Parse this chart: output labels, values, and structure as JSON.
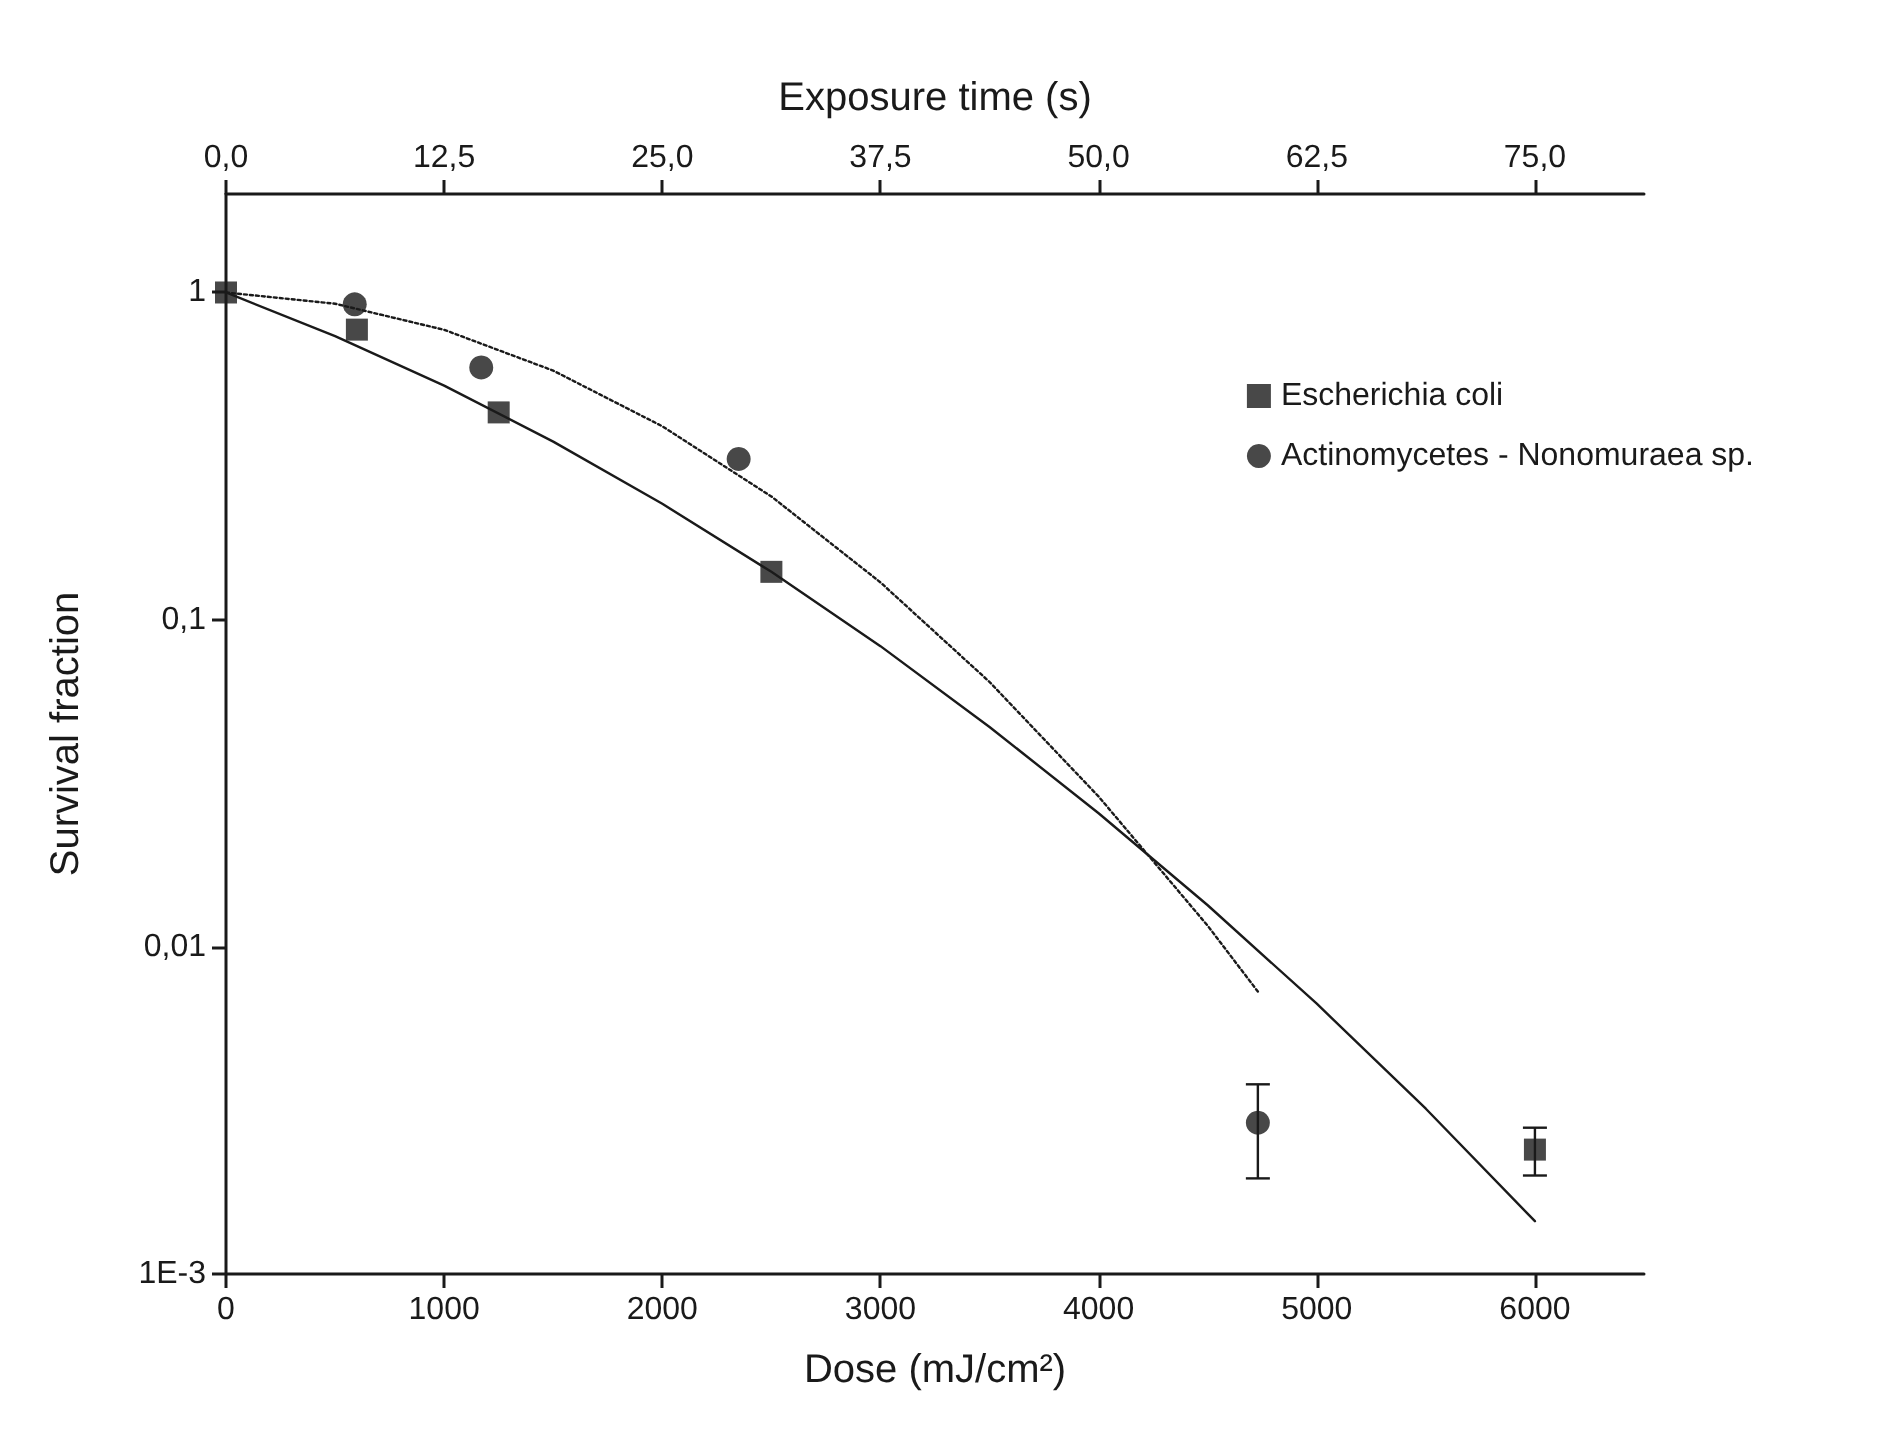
{
  "chart_data": {
    "type": "scatter",
    "xlabel": "Dose (mJ/cm²)",
    "ylabel": "Survival fraction",
    "x2label": "Exposure time (s)",
    "xlim": [
      0,
      6500
    ],
    "xticks": [
      0,
      1000,
      2000,
      3000,
      4000,
      5000,
      6000
    ],
    "x2lim": [
      0,
      81.25
    ],
    "x2ticks": [
      {
        "value": 0,
        "label": "0,0"
      },
      {
        "value": 12.5,
        "label": "12,5"
      },
      {
        "value": 25,
        "label": "25,0"
      },
      {
        "value": 37.5,
        "label": "37,5"
      },
      {
        "value": 50,
        "label": "50,0"
      },
      {
        "value": 62.5,
        "label": "62,5"
      },
      {
        "value": 75,
        "label": "75,0"
      }
    ],
    "ylim": [
      0.001,
      2
    ],
    "yticks": [
      {
        "value": 0.001,
        "label": "1E-3"
      },
      {
        "value": 0.01,
        "label": "0,01"
      },
      {
        "value": 0.1,
        "label": "0,1"
      },
      1
    ],
    "log": "y",
    "grid": false,
    "legend": "top right",
    "series": [
      {
        "name": "Escherichia coli",
        "marker": "square",
        "color": "#1a1a1a",
        "x": [
          0,
          600,
          1250,
          2500,
          6000
        ],
        "values": [
          1,
          0.77,
          0.43,
          0.14,
          0.0024
        ],
        "errors": [
          null,
          null,
          null,
          null,
          [
            0.002,
            0.0028
          ]
        ]
      },
      {
        "name": "Actinomycetes - Nonomuraea sp.",
        "marker": "circle",
        "color": "#1a1a1a",
        "x": [
          590,
          1170,
          2350,
          4730
        ],
        "values": [
          0.92,
          0.59,
          0.31,
          0.0029
        ],
        "errors": [
          null,
          null,
          null,
          [
            0.00196,
            0.0038
          ]
        ]
      },
      {
        "type": "line",
        "line_style": "solid",
        "marker": "none",
        "color": "#1a1a1a",
        "x": [
          0,
          500,
          1000,
          1500,
          2000,
          2500,
          3000,
          3500,
          4000,
          4500,
          5000,
          5500,
          6000
        ],
        "values": [
          1,
          0.736,
          0.519,
          0.35,
          0.226,
          0.14,
          0.083,
          0.047,
          0.0256,
          0.0134,
          0.0067,
          0.0032,
          0.00145
        ]
      },
      {
        "type": "line",
        "line_style": "dotted",
        "marker": "none",
        "color": "#1a1a1a",
        "x": [
          0,
          500,
          1000,
          1500,
          2000,
          2500,
          3000,
          3500,
          4000,
          4500,
          4730
        ],
        "values": [
          1,
          0.924,
          0.769,
          0.577,
          0.39,
          0.238,
          0.13,
          0.0645,
          0.0288,
          0.0116,
          0.0073
        ]
      }
    ]
  }
}
